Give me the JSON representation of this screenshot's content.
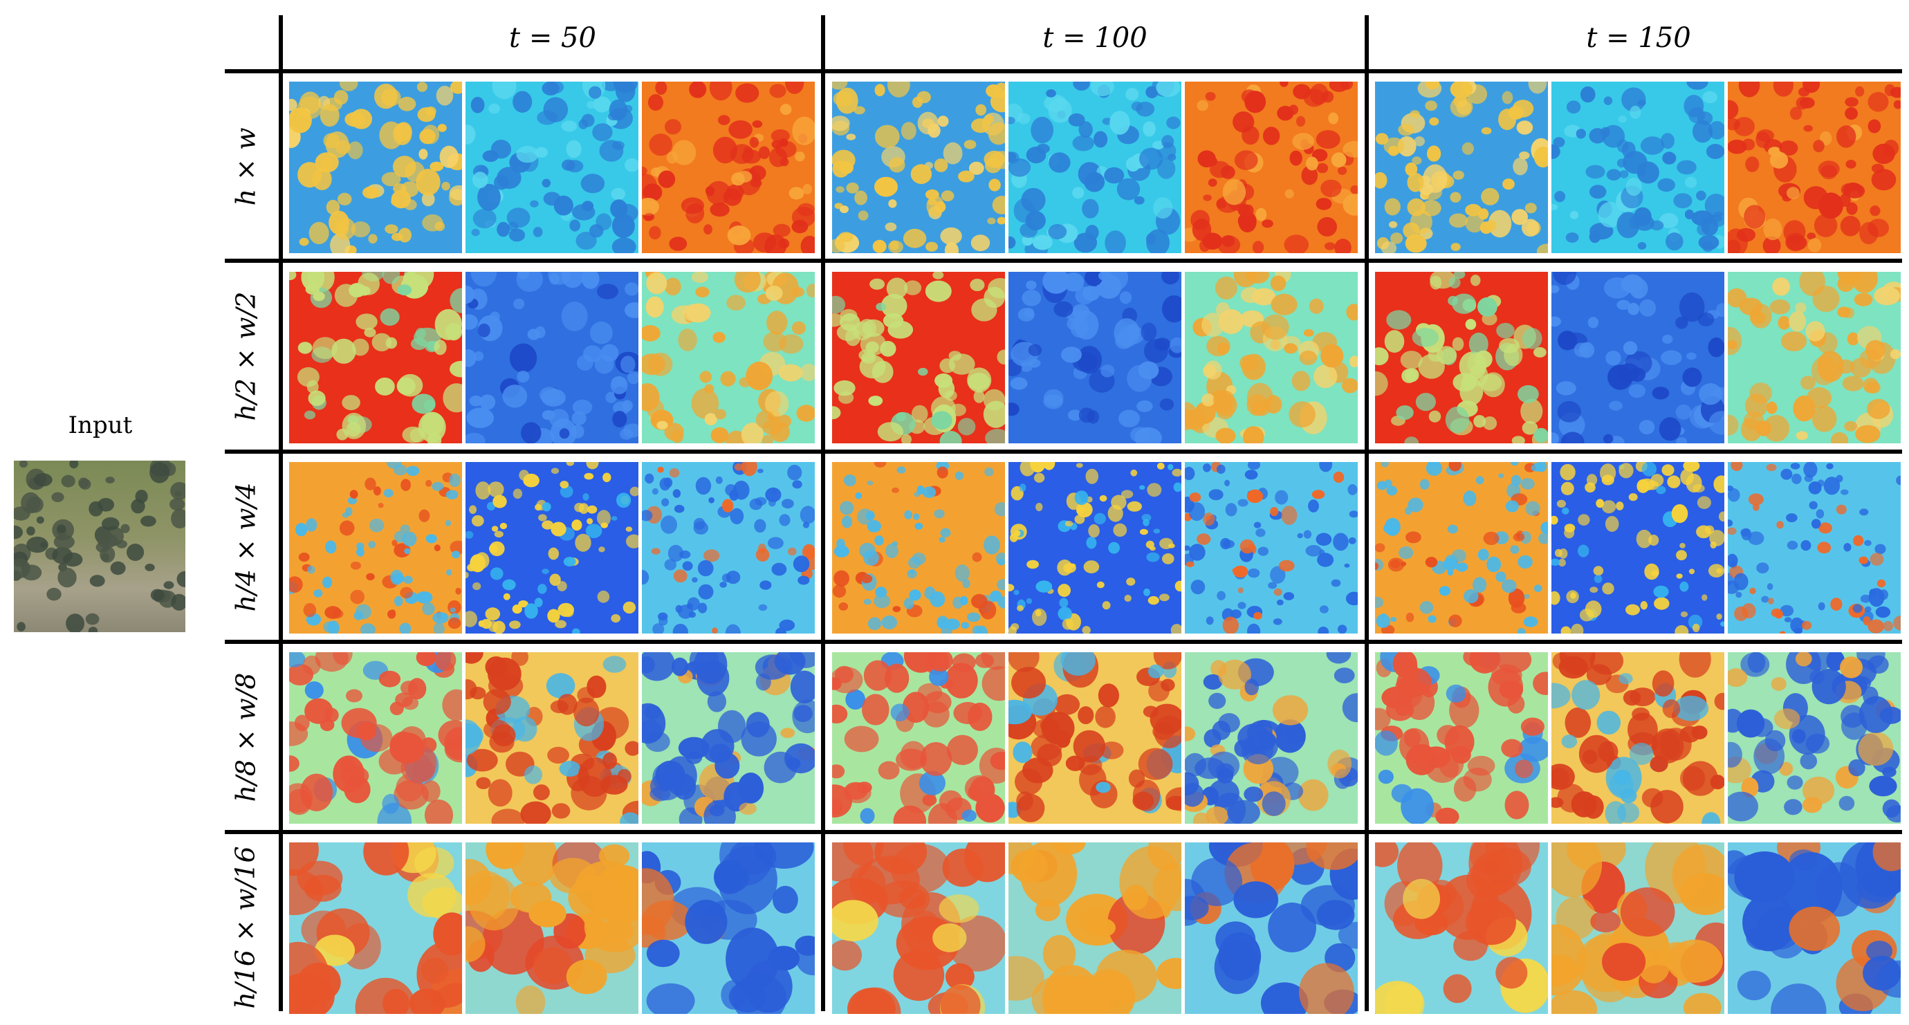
{
  "figure": {
    "input_label": "Input",
    "column_titles": [
      "t = 50",
      "t = 100",
      "t = 150"
    ],
    "row_labels": [
      "h × w",
      "h/2 × w/2",
      "h/4 × w/4",
      "h/8 × w/8",
      "h/16 × w/16"
    ],
    "icons": {
      "input_image": "dense-blob-photo",
      "feature_map": "jet-colormap-heatmap"
    }
  }
}
